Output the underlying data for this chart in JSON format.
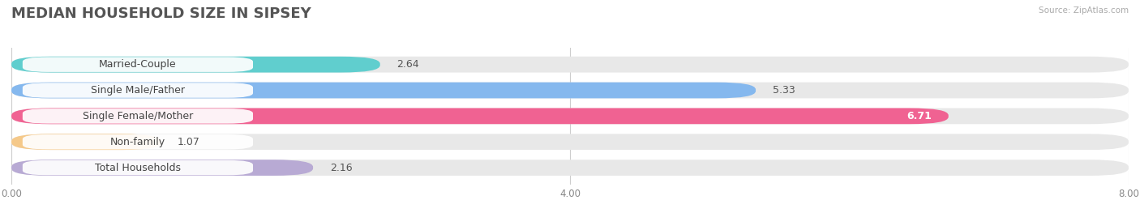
{
  "title": "MEDIAN HOUSEHOLD SIZE IN SIPSEY",
  "source": "Source: ZipAtlas.com",
  "categories": [
    "Married-Couple",
    "Single Male/Father",
    "Single Female/Mother",
    "Non-family",
    "Total Households"
  ],
  "values": [
    2.64,
    5.33,
    6.71,
    1.07,
    2.16
  ],
  "bar_colors": [
    "#60cece",
    "#85b8ee",
    "#f06292",
    "#f5c98a",
    "#b8aad4"
  ],
  "bar_bg_color": "#e8e8e8",
  "xlim": [
    0,
    8.0
  ],
  "xticks": [
    0.0,
    4.0,
    8.0
  ],
  "xtick_labels": [
    "0.00",
    "4.00",
    "8.00"
  ],
  "title_fontsize": 13,
  "label_fontsize": 9,
  "value_fontsize": 9,
  "background_color": "#ffffff",
  "bar_height": 0.62,
  "bar_gap": 1.0
}
